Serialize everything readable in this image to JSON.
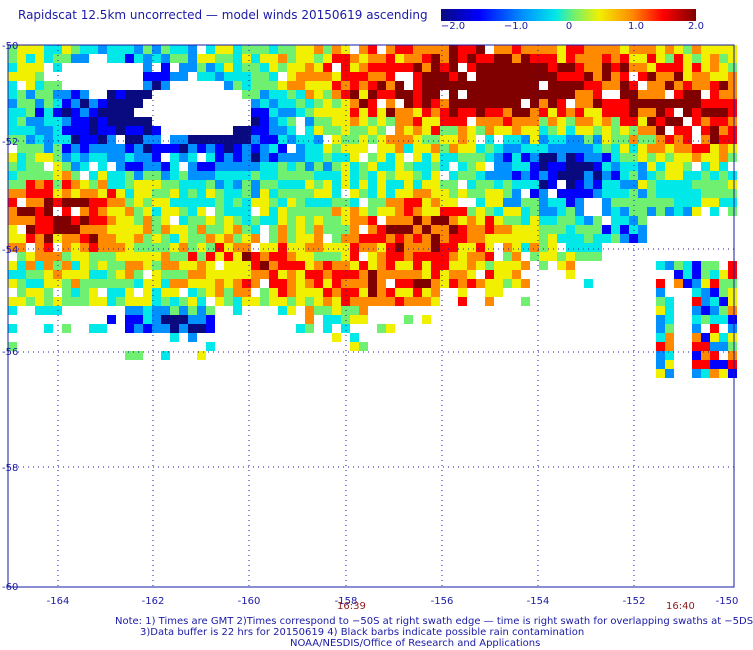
{
  "title": "Rapidscat 12.5km uncorrected — model winds 20150619 ascending",
  "colorbar": {
    "ticks": [
      "−2.0",
      "−1.0",
      "0",
      "1.0",
      "2.0"
    ],
    "range": [
      -2.0,
      2.0
    ],
    "colors": [
      "#0a0a80",
      "#0000ff",
      "#0090ff",
      "#00e8e8",
      "#70f070",
      "#f0f000",
      "#ff8a00",
      "#ff0000",
      "#800000"
    ]
  },
  "map": {
    "lon_ticks": [
      "-164",
      "-162",
      "-160",
      "-158",
      "-156",
      "-154",
      "-152",
      "-150"
    ],
    "lat_ticks": [
      "-50",
      "-52",
      "-54",
      "-56",
      "-58",
      "-60"
    ],
    "time_labels": [
      {
        "text": "16:39",
        "lon": -158.0
      },
      {
        "text": "16:40",
        "lon": -151.2
      }
    ],
    "lon_range": [
      -165,
      -150
    ],
    "lat_range": [
      -60,
      -50
    ],
    "grid": "dotted"
  },
  "footer": {
    "line1": "Note: 1) Times are GMT 2)Times correspond to −50S at right swath edge — time is right swath for overlapping swaths at −5DS",
    "line2": "3)Data buffer is 22 hrs for 20150619 4) Black barbs indicate possible rain contamination",
    "line3": "NOAA/NESDIS/Office of Research and Applications"
  }
}
